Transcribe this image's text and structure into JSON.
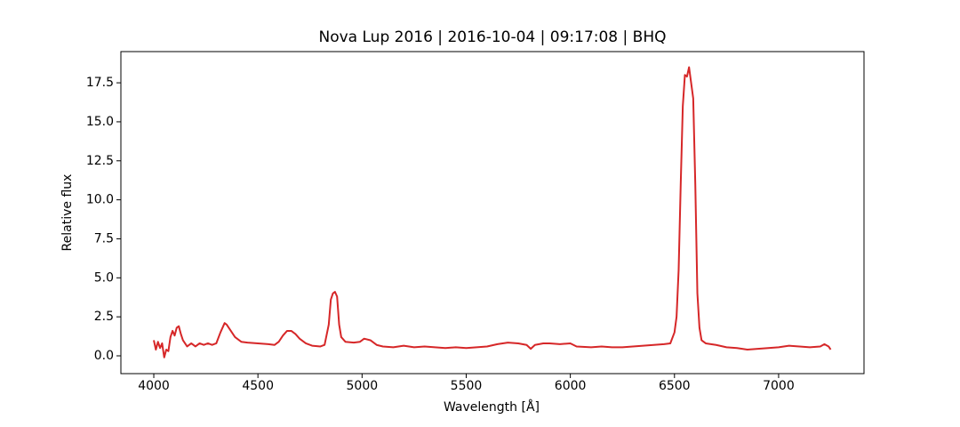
{
  "chart_data": {
    "type": "line",
    "title": "Nova Lup 2016 | 2016-10-04 | 09:17:08 | BHQ",
    "x_label": "Wavelength [Å]",
    "y_label": "Relative flux",
    "x": [
      4000,
      4010,
      4020,
      4030,
      4040,
      4050,
      4060,
      4070,
      4080,
      4090,
      4100,
      4110,
      4120,
      4130,
      4140,
      4160,
      4180,
      4200,
      4220,
      4240,
      4260,
      4280,
      4300,
      4320,
      4340,
      4350,
      4370,
      4390,
      4420,
      4450,
      4500,
      4550,
      4580,
      4600,
      4620,
      4640,
      4660,
      4680,
      4700,
      4730,
      4760,
      4800,
      4820,
      4840,
      4850,
      4860,
      4870,
      4880,
      4890,
      4900,
      4920,
      4960,
      4990,
      5010,
      5040,
      5070,
      5100,
      5150,
      5200,
      5250,
      5300,
      5350,
      5400,
      5450,
      5500,
      5550,
      5600,
      5650,
      5700,
      5750,
      5790,
      5810,
      5830,
      5870,
      5900,
      5950,
      6000,
      6030,
      6100,
      6150,
      6200,
      6250,
      6300,
      6350,
      6400,
      6450,
      6480,
      6500,
      6510,
      6520,
      6530,
      6540,
      6550,
      6560,
      6570,
      6580,
      6590,
      6600,
      6610,
      6620,
      6630,
      6650,
      6700,
      6750,
      6800,
      6850,
      6900,
      6950,
      7000,
      7050,
      7100,
      7150,
      7200,
      7220,
      7240,
      7250
    ],
    "series": [
      {
        "name": "flux",
        "color": "#d62728",
        "values": [
          1.0,
          0.4,
          0.9,
          0.5,
          0.8,
          -0.1,
          0.4,
          0.3,
          1.2,
          1.6,
          1.3,
          1.8,
          1.9,
          1.4,
          1.0,
          0.6,
          0.8,
          0.6,
          0.8,
          0.7,
          0.8,
          0.7,
          0.8,
          1.5,
          2.1,
          2.0,
          1.6,
          1.2,
          0.9,
          0.85,
          0.8,
          0.75,
          0.7,
          0.9,
          1.3,
          1.6,
          1.6,
          1.4,
          1.1,
          0.8,
          0.65,
          0.6,
          0.7,
          2.0,
          3.6,
          4.0,
          4.1,
          3.8,
          2.0,
          1.2,
          0.9,
          0.85,
          0.9,
          1.1,
          1.0,
          0.7,
          0.6,
          0.55,
          0.65,
          0.55,
          0.6,
          0.55,
          0.5,
          0.55,
          0.5,
          0.55,
          0.6,
          0.75,
          0.85,
          0.8,
          0.7,
          0.45,
          0.7,
          0.8,
          0.8,
          0.75,
          0.8,
          0.6,
          0.55,
          0.6,
          0.55,
          0.55,
          0.6,
          0.65,
          0.7,
          0.75,
          0.8,
          1.5,
          2.5,
          5.5,
          11.0,
          16.0,
          18.0,
          17.9,
          18.5,
          17.5,
          16.5,
          11.0,
          4.0,
          1.8,
          1.0,
          0.8,
          0.7,
          0.55,
          0.5,
          0.4,
          0.45,
          0.5,
          0.55,
          0.65,
          0.6,
          0.55,
          0.6,
          0.75,
          0.6,
          0.4
        ]
      }
    ],
    "xlim": [
      3842,
      7410
    ],
    "ylim": [
      -1.14,
      19.5
    ],
    "xticks": [
      4000,
      4500,
      5000,
      5500,
      6000,
      6500,
      7000
    ],
    "yticks": [
      {
        "value": 0,
        "label": "0.0"
      },
      {
        "value": 2.5,
        "label": "2.5"
      },
      {
        "value": 5,
        "label": "5.0"
      },
      {
        "value": 7.5,
        "label": "7.5"
      },
      {
        "value": 10,
        "label": "10.0"
      },
      {
        "value": 12.5,
        "label": "12.5"
      },
      {
        "value": 15,
        "label": "15.0"
      },
      {
        "value": 17.5,
        "label": "17.5"
      }
    ],
    "grid": false
  }
}
